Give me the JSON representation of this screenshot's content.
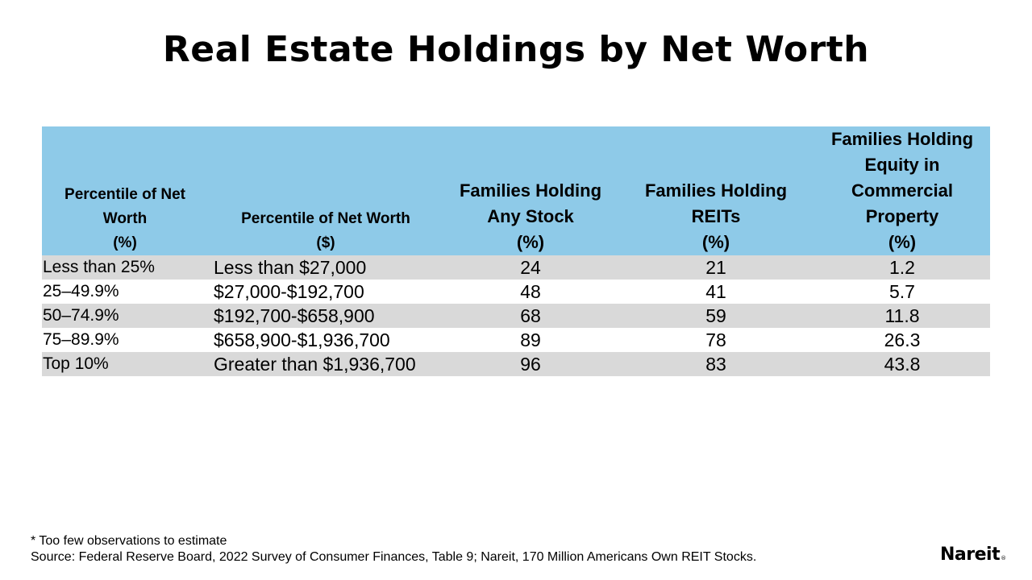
{
  "title": "Real Estate Holdings by Net Worth",
  "table": {
    "headers": [
      {
        "lines": [
          "Percentile of Net",
          "Worth",
          "(%)"
        ]
      },
      {
        "lines": [
          "Percentile of Net Worth",
          "($)"
        ]
      },
      {
        "lines": [
          "Families Holding",
          "Any Stock",
          "(%)"
        ]
      },
      {
        "lines": [
          "Families Holding",
          "REITs",
          "(%)"
        ]
      },
      {
        "lines": [
          "Families Holding",
          "Equity in",
          "Commercial",
          "Property",
          "(%)"
        ]
      }
    ],
    "rows": [
      [
        "Less than 25%",
        "Less than $27,000",
        "24",
        "21",
        "1.2"
      ],
      [
        "25–49.9%",
        "$27,000-$192,700",
        "48",
        "41",
        "5.7"
      ],
      [
        "50–74.9%",
        "$192,700-$658,900",
        "68",
        "59",
        "11.8"
      ],
      [
        "75–89.9%",
        "$658,900-$1,936,700",
        "89",
        "78",
        "26.3"
      ],
      [
        "Top 10%",
        "Greater than $1,936,700",
        "96",
        "83",
        "43.8"
      ]
    ],
    "colors": {
      "header_bg": "#8ecae8",
      "stripe_bg": "#d9d9d9"
    }
  },
  "footnote": {
    "note": "* Too few observations to estimate",
    "source": "Source: Federal Reserve Board, 2022 Survey of Consumer Finances, Table 9; Nareit, 170 Million Americans Own REIT Stocks."
  },
  "logo": {
    "text": "Nareit",
    "mark": "®"
  }
}
